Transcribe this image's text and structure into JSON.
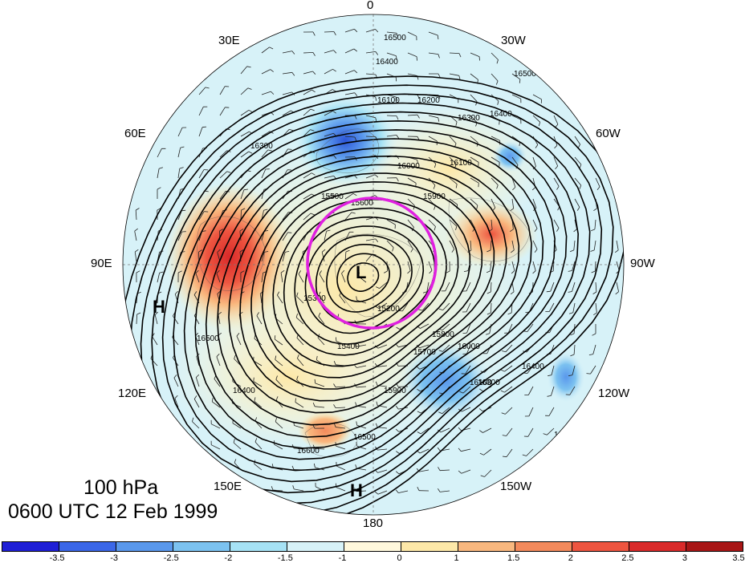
{
  "map": {
    "title_level": "100 hPa",
    "title_time": "0600 UTC 12 Feb 1999",
    "lon_labels": {
      "n": "0",
      "nne": "30E",
      "nnw": "30W",
      "ene": "60E",
      "wnw": "60W",
      "e": "90E",
      "w": "90W",
      "ese": "120E",
      "wsw": "120W",
      "sse": "150E",
      "ssw": "150W",
      "s": "180"
    },
    "centers": {
      "low": "L",
      "high_left": "H",
      "high_bottom": "H"
    },
    "contour_labels": [
      "16500",
      "16400",
      "16100",
      "16200",
      "16300",
      "16400",
      "16500",
      "16100",
      "16000",
      "15900",
      "15600",
      "15500",
      "15400",
      "15300",
      "15200",
      "15700",
      "15800",
      "15900",
      "16000",
      "16100",
      "16300",
      "16400",
      "16500",
      "16500",
      "16600",
      "16300",
      "16400",
      "16500"
    ],
    "colorbar": {
      "colors": [
        "#1f1fd6",
        "#3b67e8",
        "#5a98ec",
        "#7cc2f0",
        "#a6e2f5",
        "#d7f2f8",
        "#fff8dc",
        "#fde8a8",
        "#f9b87f",
        "#f38a5c",
        "#ee5540",
        "#d92a2a",
        "#a81616"
      ],
      "ticks": [
        "-3.5",
        "-3",
        "-2.5",
        "-2",
        "-1.5",
        "-1",
        "0",
        "1",
        "1.5",
        "2",
        "2.5",
        "3",
        "3.5"
      ]
    },
    "colors": {
      "ring": "#e020e0",
      "contour": "#000000",
      "background": "#ffffff"
    }
  }
}
